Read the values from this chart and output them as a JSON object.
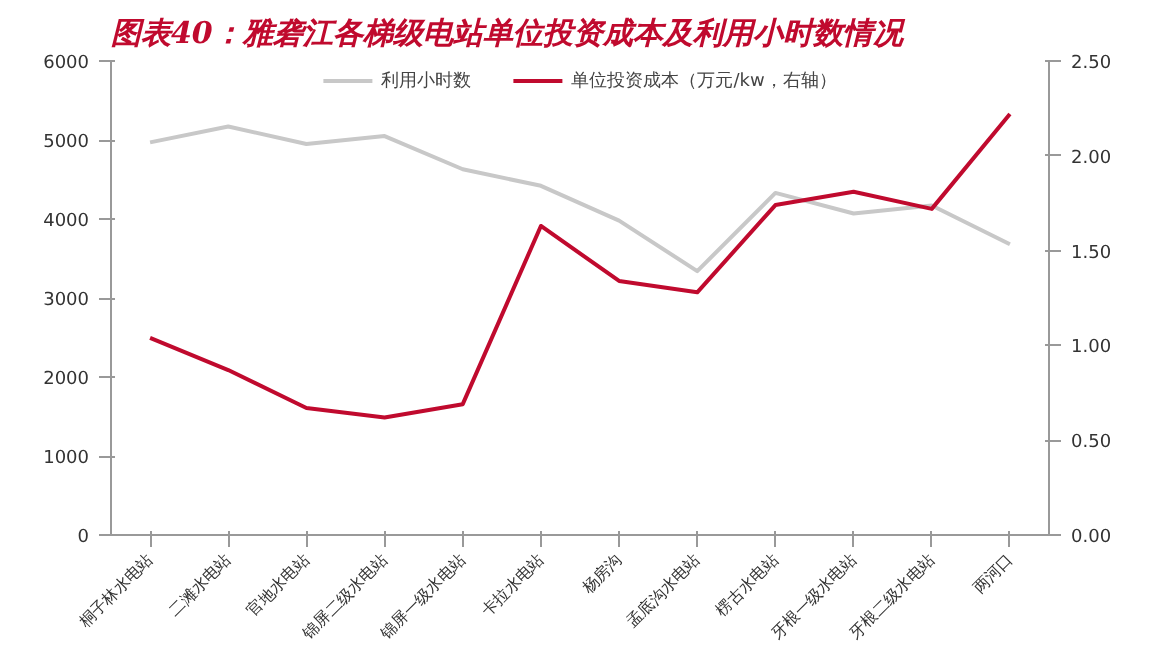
{
  "chart_data": {
    "type": "line",
    "title": "图表40：雅砻江各梯级电站单位投资成本及利用小时数情况",
    "categories": [
      "桐子林水电站",
      "二滩水电站",
      "官地水电站",
      "锦屏二级水电站",
      "锦屏一级水电站",
      "卡拉水电站",
      "杨房沟",
      "孟底沟水电站",
      "楞古水电站",
      "牙根一级水电站",
      "牙根二级水电站",
      "两河口"
    ],
    "series": [
      {
        "name": "利用小时数",
        "color": "#c8c8c8",
        "values": [
          4970,
          5170,
          4950,
          5050,
          4630,
          4420,
          3980,
          3340,
          4330,
          4070,
          4170,
          3680
        ]
      },
      {
        "name": "单位投资成本（万元/kw，右轴）",
        "color": "#c00a2e",
        "axis": "y2",
        "values": [
          1.04,
          0.87,
          0.67,
          0.62,
          0.69,
          1.63,
          1.34,
          1.28,
          1.74,
          1.81,
          1.72,
          2.22
        ]
      }
    ],
    "ylim": [
      0,
      6000
    ],
    "yticks": [
      0,
      1000,
      2000,
      3000,
      4000,
      5000,
      6000
    ],
    "y2lim": [
      0,
      2.5
    ],
    "y2ticks": [
      {
        "value": 0,
        "label": "0.00"
      },
      {
        "value": 0.5,
        "label": "0.50"
      },
      {
        "value": 1,
        "label": "1.00"
      },
      {
        "value": 1.5,
        "label": "1.50"
      },
      {
        "value": 2,
        "label": "2.00"
      },
      {
        "value": 2.5,
        "label": "2.50"
      }
    ],
    "grid": false,
    "legend": "top"
  }
}
